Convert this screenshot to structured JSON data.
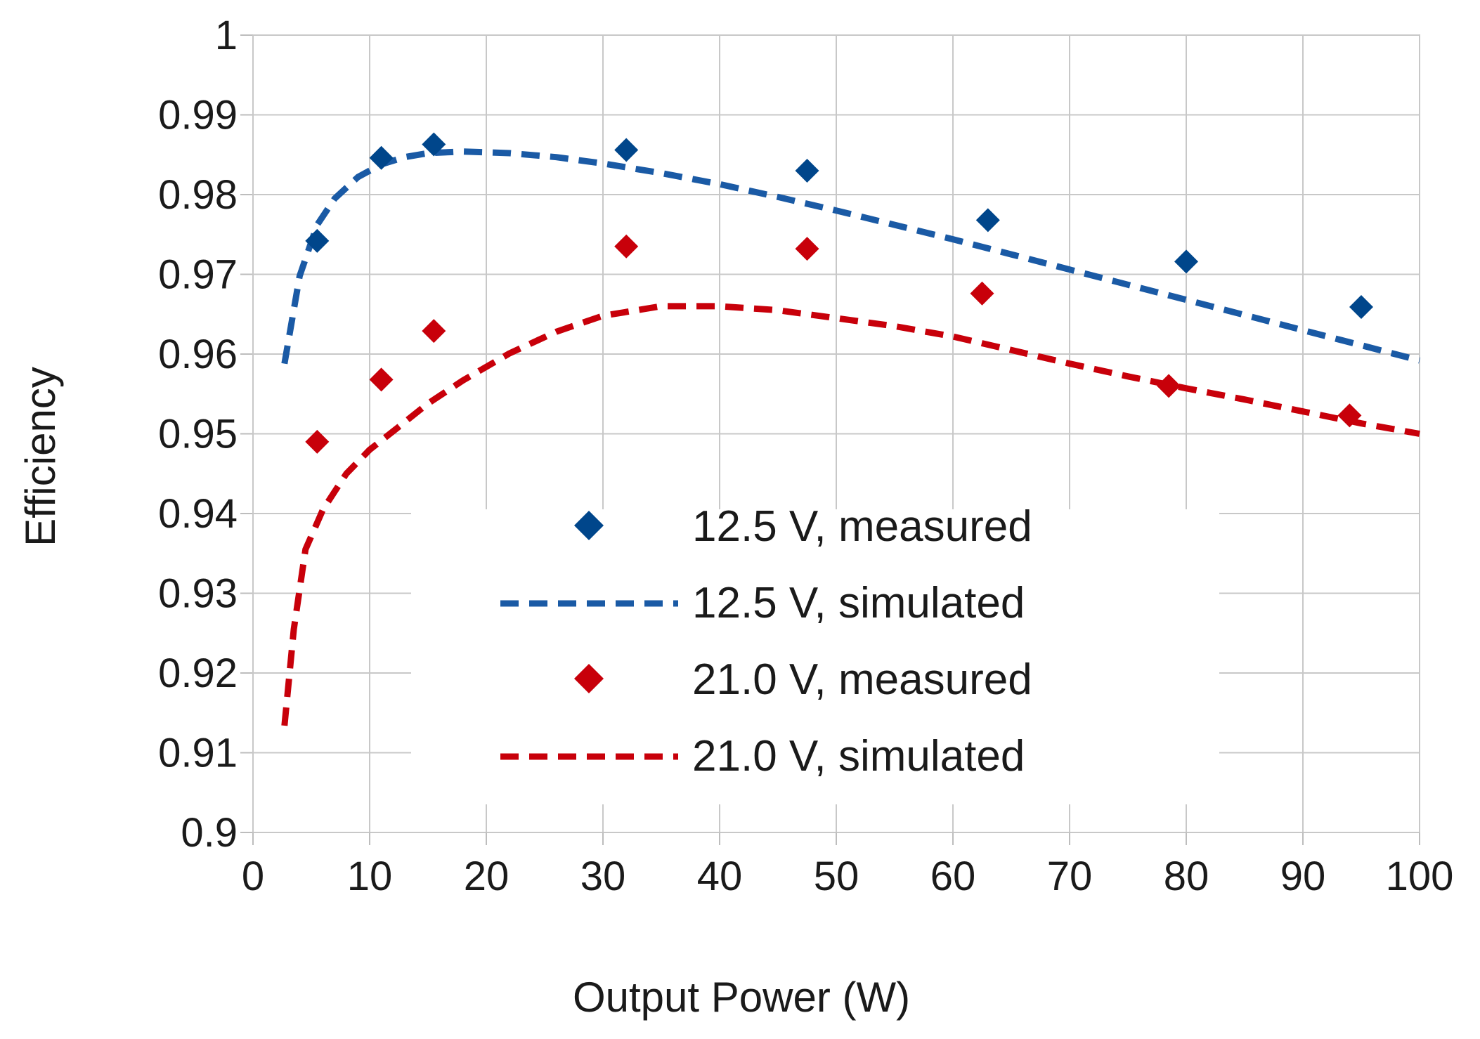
{
  "chart_data": {
    "type": "scatter",
    "xlabel": "Output Power (W)",
    "ylabel": "Efficiency",
    "xlim": [
      0,
      100
    ],
    "ylim": [
      0.9,
      1
    ],
    "xticks": [
      "0",
      "10",
      "20",
      "30",
      "40",
      "50",
      "60",
      "70",
      "80",
      "90",
      "100"
    ],
    "yticks": [
      "0.9",
      "0.91",
      "0.92",
      "0.93",
      "0.94",
      "0.95",
      "0.96",
      "0.97",
      "0.98",
      "0.99",
      "1"
    ],
    "grid": true,
    "legend_position": "center-right",
    "series": [
      {
        "name": "12.5 V, measured",
        "kind": "markers",
        "marker": "diamond",
        "color": "#00468b",
        "x": [
          5.5,
          11,
          15.5,
          32,
          47.5,
          63,
          80,
          95
        ],
        "y": [
          0.9742,
          0.9846,
          0.9863,
          0.9856,
          0.983,
          0.9768,
          0.9716,
          0.9659
        ]
      },
      {
        "name": "12.5 V, simulated",
        "kind": "dashed-line",
        "color": "#1a5aa5",
        "x": [
          2.7,
          4,
          5.5,
          7,
          9,
          11,
          13,
          15,
          18,
          22,
          26,
          30,
          35,
          40,
          45,
          50,
          55,
          60,
          65,
          70,
          75,
          80,
          85,
          90,
          95,
          100
        ],
        "y": [
          0.9588,
          0.9698,
          0.9762,
          0.9795,
          0.9822,
          0.9838,
          0.9847,
          0.9852,
          0.9854,
          0.9852,
          0.9847,
          0.9839,
          0.9827,
          0.9813,
          0.9797,
          0.978,
          0.9762,
          0.9744,
          0.9725,
          0.9706,
          0.9687,
          0.9668,
          0.9649,
          0.963,
          0.9611,
          0.9592
        ]
      },
      {
        "name": "21.0 V, measured",
        "kind": "markers",
        "marker": "diamond",
        "color": "#c8000a",
        "x": [
          5.5,
          11,
          15.5,
          32,
          47.5,
          62.5,
          78.5,
          94
        ],
        "y": [
          0.949,
          0.9568,
          0.9629,
          0.9735,
          0.9732,
          0.9676,
          0.956,
          0.9523
        ]
      },
      {
        "name": "21.0 V, simulated",
        "kind": "dashed-line",
        "color": "#c8000a",
        "x": [
          2.7,
          3.5,
          4.5,
          6,
          8,
          10,
          12,
          15,
          18,
          22,
          26,
          30,
          35,
          40,
          45,
          50,
          55,
          60,
          65,
          70,
          75,
          80,
          85,
          90,
          95,
          100
        ],
        "y": [
          0.9134,
          0.9255,
          0.9355,
          0.9405,
          0.945,
          0.948,
          0.9503,
          0.9538,
          0.9567,
          0.9601,
          0.9628,
          0.9648,
          0.966,
          0.966,
          0.9655,
          0.9645,
          0.9635,
          0.9622,
          0.9605,
          0.9588,
          0.9572,
          0.9557,
          0.9543,
          0.9528,
          0.9513,
          0.95
        ]
      }
    ]
  }
}
